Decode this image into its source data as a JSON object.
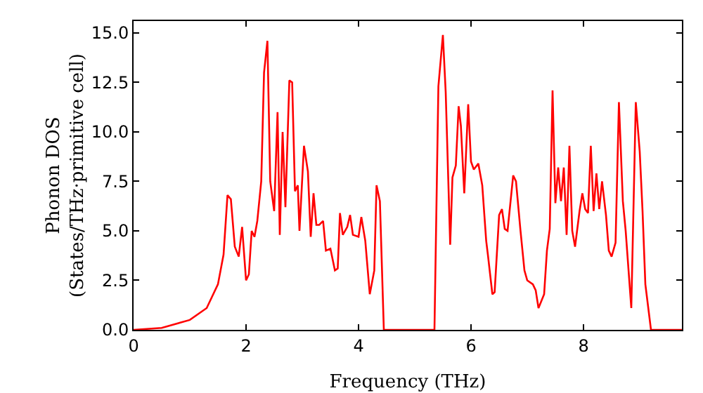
{
  "chart_data": {
    "type": "line",
    "xlabel": "Frequency (THz)",
    "ylabel": "Phonon DOS\n(States/THz·primitive cell)",
    "xlim": [
      0,
      9.75
    ],
    "ylim": [
      0,
      15.6
    ],
    "xticks": [
      0,
      2,
      4,
      6,
      8
    ],
    "yticks": [
      {
        "value": 0,
        "label": "0.0"
      },
      {
        "value": 2.5,
        "label": "2.5"
      },
      {
        "value": 5,
        "label": "5.0"
      },
      {
        "value": 7.5,
        "label": "7.5"
      },
      {
        "value": 10,
        "label": "10.0"
      },
      {
        "value": 12.5,
        "label": "12.5"
      },
      {
        "value": 15,
        "label": "15.0"
      }
    ],
    "grid": false,
    "marker": "none",
    "line_style": "solid",
    "series": [
      {
        "color": "#ff0000",
        "x": [
          0,
          0.5,
          1.0,
          1.3,
          1.5,
          1.6,
          1.67,
          1.73,
          1.8,
          1.87,
          1.93,
          2.0,
          2.05,
          2.1,
          2.15,
          2.2,
          2.27,
          2.32,
          2.38,
          2.43,
          2.5,
          2.56,
          2.6,
          2.65,
          2.7,
          2.77,
          2.82,
          2.87,
          2.92,
          2.95,
          3.03,
          3.1,
          3.15,
          3.2,
          3.25,
          3.3,
          3.37,
          3.42,
          3.5,
          3.58,
          3.63,
          3.67,
          3.72,
          3.8,
          3.85,
          3.9,
          4.0,
          4.05,
          4.12,
          4.2,
          4.28,
          4.32,
          4.38,
          4.45,
          5.35,
          5.42,
          5.5,
          5.55,
          5.63,
          5.67,
          5.73,
          5.78,
          5.82,
          5.88,
          5.95,
          6.0,
          6.05,
          6.13,
          6.2,
          6.27,
          6.3,
          6.38,
          6.42,
          6.5,
          6.55,
          6.6,
          6.65,
          6.75,
          6.8,
          6.88,
          6.95,
          7.0,
          7.1,
          7.15,
          7.2,
          7.3,
          7.35,
          7.4,
          7.45,
          7.5,
          7.55,
          7.6,
          7.65,
          7.7,
          7.75,
          7.8,
          7.85,
          7.93,
          7.98,
          8.03,
          8.08,
          8.13,
          8.18,
          8.23,
          8.28,
          8.33,
          8.4,
          8.45,
          8.5,
          8.57,
          8.63,
          8.7,
          8.75,
          8.85,
          8.93,
          9.0,
          9.05,
          9.1,
          9.2,
          9.75
        ],
        "values": [
          0,
          0.1,
          0.5,
          1.1,
          2.3,
          3.8,
          6.8,
          6.6,
          4.2,
          3.7,
          5.2,
          2.5,
          2.8,
          5.0,
          4.7,
          5.5,
          7.5,
          13.0,
          14.6,
          7.5,
          6.0,
          11.0,
          4.8,
          10.0,
          6.2,
          12.6,
          12.5,
          7.0,
          7.3,
          5.0,
          9.3,
          8.0,
          4.7,
          6.9,
          5.3,
          5.3,
          5.5,
          4.0,
          4.1,
          3.0,
          3.1,
          5.9,
          4.8,
          5.2,
          5.8,
          4.8,
          4.7,
          5.7,
          4.5,
          1.8,
          3.0,
          7.3,
          6.5,
          0,
          0,
          12.3,
          14.9,
          12.0,
          4.3,
          7.7,
          8.3,
          11.3,
          10.3,
          6.9,
          11.4,
          8.5,
          8.1,
          8.4,
          7.3,
          4.5,
          3.8,
          1.8,
          1.9,
          5.8,
          6.1,
          5.1,
          5.0,
          7.8,
          7.5,
          5.0,
          3.0,
          2.5,
          2.3,
          2.0,
          1.1,
          1.8,
          4.0,
          5.1,
          12.1,
          6.4,
          8.2,
          6.5,
          8.2,
          4.8,
          9.3,
          5.0,
          4.2,
          6.0,
          6.9,
          6.1,
          5.9,
          9.3,
          6.0,
          7.9,
          6.1,
          7.5,
          5.8,
          4.0,
          3.7,
          4.4,
          11.5,
          6.5,
          5.0,
          1.1,
          11.5,
          9.0,
          6.0,
          2.3,
          0,
          0
        ]
      }
    ]
  }
}
